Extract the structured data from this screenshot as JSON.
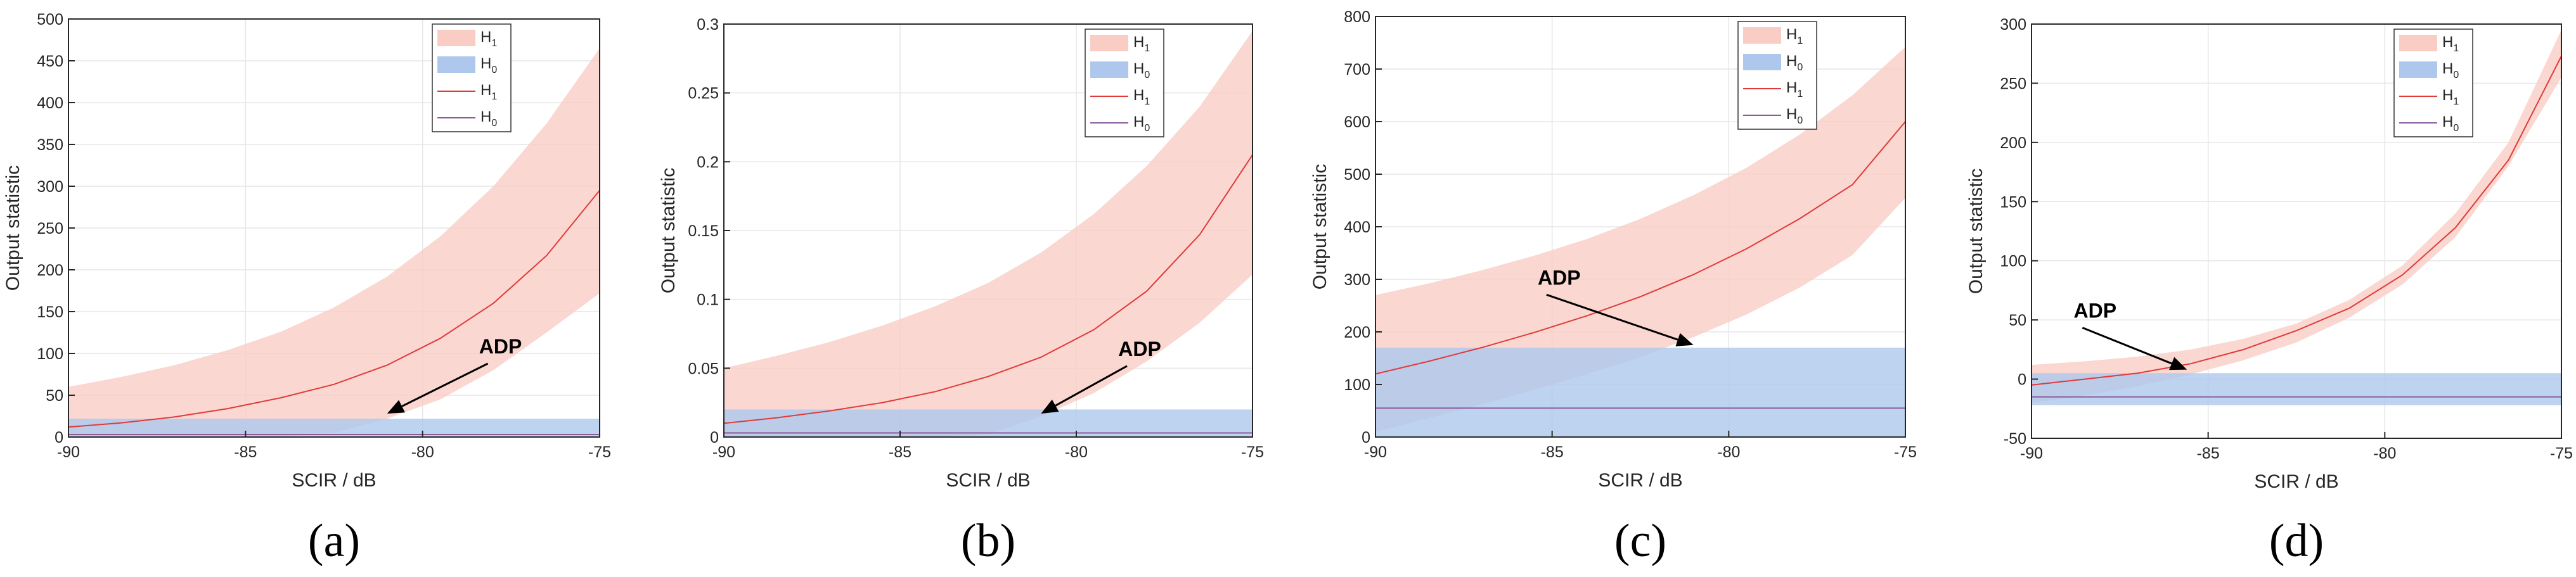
{
  "colors": {
    "h1_band": "#f9cdc4",
    "h0_band": "#adc8ec",
    "h1_line": "#e03a3a",
    "h0_line": "#8a5a9a",
    "grid": "#e6e6e6",
    "axis": "#262626"
  },
  "legend_entries": [
    {
      "base": "H",
      "sub": "1",
      "kind": "band",
      "series": "H1"
    },
    {
      "base": "H",
      "sub": "0",
      "kind": "band",
      "series": "H0"
    },
    {
      "base": "H",
      "sub": "1",
      "kind": "line",
      "series": "H1"
    },
    {
      "base": "H",
      "sub": "0",
      "kind": "line",
      "series": "H0"
    }
  ],
  "chart_data": [
    {
      "panel": "(a)",
      "type": "area",
      "xlabel": "SCIR / dB",
      "ylabel": "Output statistic",
      "xlim": [
        -90,
        -75
      ],
      "ylim": [
        0,
        500
      ],
      "xticks": [
        -90,
        -85,
        -80,
        -75
      ],
      "yticks": [
        0,
        50,
        100,
        150,
        200,
        250,
        300,
        350,
        400,
        450,
        500
      ],
      "grid": true,
      "legend_position": "top-right",
      "x": [
        -90,
        -88.5,
        -87,
        -85.5,
        -84,
        -82.5,
        -81,
        -79.5,
        -78,
        -76.5,
        -75
      ],
      "series": [
        {
          "name": "H1",
          "kind": "band",
          "upper": [
            60,
            72,
            86,
            104,
            126,
            155,
            192,
            240,
            300,
            375,
            465
          ],
          "lower": [
            0,
            0,
            0,
            0,
            0,
            5,
            22,
            45,
            80,
            125,
            172
          ]
        },
        {
          "name": "H0",
          "kind": "band",
          "upper": [
            22,
            22,
            22,
            22,
            22,
            22,
            22,
            22,
            22,
            22,
            22
          ],
          "lower": [
            0,
            0,
            0,
            0,
            0,
            0,
            0,
            0,
            0,
            0,
            0
          ]
        },
        {
          "name": "H1",
          "kind": "line",
          "values": [
            12,
            17,
            24,
            34,
            47,
            63,
            86,
            118,
            160,
            217,
            295
          ]
        },
        {
          "name": "H0",
          "kind": "line",
          "values": [
            3,
            3,
            3,
            3,
            3,
            3,
            3,
            3,
            3,
            3,
            3
          ]
        }
      ],
      "annotation": {
        "text": "ADP",
        "text_x": -77.8,
        "text_y": 100,
        "arrow_x": -81,
        "arrow_y": 28
      }
    },
    {
      "panel": "(b)",
      "type": "area",
      "xlabel": "SCIR / dB",
      "ylabel": "Output statistic",
      "xlim": [
        -90,
        -75
      ],
      "ylim": [
        0,
        0.3
      ],
      "xticks": [
        -90,
        -85,
        -80,
        -75
      ],
      "yticks": [
        0,
        0.05,
        0.1,
        0.15,
        0.2,
        0.25,
        0.3
      ],
      "grid": true,
      "legend_position": "top-right",
      "x": [
        -90,
        -88.5,
        -87,
        -85.5,
        -84,
        -82.5,
        -81,
        -79.5,
        -78,
        -76.5,
        -75
      ],
      "series": [
        {
          "name": "H1",
          "kind": "band",
          "upper": [
            0.05,
            0.059,
            0.069,
            0.081,
            0.095,
            0.112,
            0.134,
            0.162,
            0.197,
            0.24,
            0.295
          ],
          "lower": [
            0,
            0,
            0,
            0,
            0,
            0.002,
            0.015,
            0.032,
            0.055,
            0.083,
            0.118
          ]
        },
        {
          "name": "H0",
          "kind": "band",
          "upper": [
            0.02,
            0.02,
            0.02,
            0.02,
            0.02,
            0.02,
            0.02,
            0.02,
            0.02,
            0.02,
            0.02
          ],
          "lower": [
            0,
            0,
            0,
            0,
            0,
            0,
            0,
            0,
            0,
            0,
            0
          ]
        },
        {
          "name": "H1",
          "kind": "line",
          "values": [
            0.01,
            0.014,
            0.019,
            0.025,
            0.033,
            0.044,
            0.058,
            0.078,
            0.106,
            0.147,
            0.205
          ]
        },
        {
          "name": "H0",
          "kind": "line",
          "values": [
            0.003,
            0.003,
            0.003,
            0.003,
            0.003,
            0.003,
            0.003,
            0.003,
            0.003,
            0.003,
            0.003
          ]
        }
      ],
      "annotation": {
        "text": "ADP",
        "text_x": -78.2,
        "text_y": 0.059,
        "arrow_x": -81,
        "arrow_y": 0.017
      }
    },
    {
      "panel": "(c)",
      "type": "area",
      "xlabel": "SCIR / dB",
      "ylabel": "Output statistic",
      "xlim": [
        -90,
        -75
      ],
      "ylim": [
        0,
        800
      ],
      "xticks": [
        -90,
        -85,
        -80,
        -75
      ],
      "yticks": [
        0,
        100,
        200,
        300,
        400,
        500,
        600,
        700,
        800
      ],
      "grid": true,
      "legend_position": "top-right",
      "x": [
        -90,
        -88.5,
        -87,
        -85.5,
        -84,
        -82.5,
        -81,
        -79.5,
        -78,
        -76.5,
        -75
      ],
      "series": [
        {
          "name": "H1",
          "kind": "band",
          "upper": [
            270,
            292,
            317,
            345,
            377,
            415,
            460,
            512,
            575,
            650,
            742
          ],
          "lower": [
            10,
            36,
            62,
            90,
            120,
            152,
            190,
            233,
            284,
            346,
            455
          ]
        },
        {
          "name": "H0",
          "kind": "band",
          "upper": [
            170,
            170,
            170,
            170,
            170,
            170,
            170,
            170,
            170,
            170,
            170
          ],
          "lower": [
            0,
            0,
            0,
            0,
            0,
            0,
            0,
            0,
            0,
            0,
            0
          ]
        },
        {
          "name": "H1",
          "kind": "line",
          "values": [
            120,
            144,
            170,
            199,
            231,
            267,
            309,
            358,
            415,
            480,
            600
          ]
        },
        {
          "name": "H0",
          "kind": "line",
          "values": [
            55,
            55,
            55,
            55,
            55,
            55,
            55,
            55,
            55,
            55,
            55
          ]
        }
      ],
      "annotation": {
        "text": "ADP",
        "text_x": -84.8,
        "text_y": 290,
        "arrow_x": -81,
        "arrow_y": 175
      }
    },
    {
      "panel": "(d)",
      "type": "area",
      "xlabel": "SCIR / dB",
      "ylabel": "Output statistic",
      "xlim": [
        -90,
        -75
      ],
      "ylim": [
        -50,
        300
      ],
      "xticks": [
        -90,
        -85,
        -80,
        -75
      ],
      "yticks": [
        -50,
        0,
        50,
        100,
        150,
        200,
        250,
        300
      ],
      "grid": true,
      "legend_position": "top-right",
      "x": [
        -90,
        -88.5,
        -87,
        -85.5,
        -84,
        -82.5,
        -81,
        -79.5,
        -78,
        -76.5,
        -75
      ],
      "series": [
        {
          "name": "H1",
          "kind": "band",
          "upper": [
            12,
            15,
            19,
            25,
            34,
            47,
            67,
            96,
            140,
            200,
            295
          ],
          "lower": [
            -20,
            -14,
            -6,
            4,
            16,
            31,
            52,
            80,
            120,
            180,
            255
          ]
        },
        {
          "name": "H0",
          "kind": "band",
          "upper": [
            5,
            5,
            5,
            5,
            5,
            5,
            5,
            5,
            5,
            5,
            5
          ],
          "lower": [
            -22,
            -22,
            -22,
            -22,
            -22,
            -22,
            -22,
            -22,
            -22,
            -22,
            -22
          ]
        },
        {
          "name": "H1",
          "kind": "line",
          "values": [
            -5,
            0,
            5,
            13,
            25,
            41,
            60,
            88,
            128,
            185,
            273
          ]
        },
        {
          "name": "H0",
          "kind": "line",
          "values": [
            -15,
            -15,
            -15,
            -15,
            -15,
            -15,
            -15,
            -15,
            -15,
            -15,
            -15
          ]
        }
      ],
      "annotation": {
        "text": "ADP",
        "text_x": -88.2,
        "text_y": 52,
        "arrow_x": -85.6,
        "arrow_y": 8
      }
    }
  ]
}
